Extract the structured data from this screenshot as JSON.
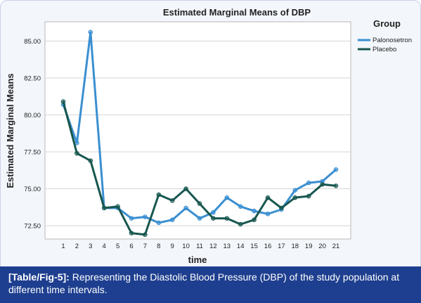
{
  "chart_data": {
    "type": "line",
    "title": "Estimated Marginal Means of DBP",
    "xlabel": "time",
    "ylabel": "Estimated Marginal Means",
    "categories": [
      "1",
      "2",
      "3",
      "4",
      "5",
      "6",
      "7",
      "8",
      "9",
      "10",
      "11",
      "12",
      "13",
      "14",
      "15",
      "16",
      "17",
      "18",
      "19",
      "20",
      "21"
    ],
    "yticks": [
      "72.50",
      "75.00",
      "77.50",
      "80.00",
      "82.50",
      "85.00"
    ],
    "ylim": [
      71.6,
      86.3
    ],
    "grid": "horizontal",
    "legend_title": "Group",
    "legend_position": "top-right",
    "series": [
      {
        "name": "Palonosetron",
        "color": "#3a8fd1",
        "values": [
          80.7,
          78.1,
          85.6,
          73.7,
          73.7,
          73.0,
          73.1,
          72.7,
          72.9,
          73.7,
          73.0,
          73.4,
          74.4,
          73.8,
          73.5,
          73.3,
          73.6,
          74.9,
          75.4,
          75.5,
          76.3
        ]
      },
      {
        "name": "Placebo",
        "color": "#17574f",
        "values": [
          80.9,
          77.4,
          76.9,
          73.7,
          73.8,
          72.0,
          71.9,
          74.6,
          74.2,
          75.0,
          74.0,
          73.0,
          73.0,
          72.6,
          72.9,
          74.4,
          73.7,
          74.4,
          74.5,
          75.3,
          75.2
        ]
      }
    ]
  },
  "caption": {
    "tag": "[Table/Fig-5]:",
    "text": " Representing the Diastolic Blood Pressure (DBP) of the study population at different time intervals."
  }
}
